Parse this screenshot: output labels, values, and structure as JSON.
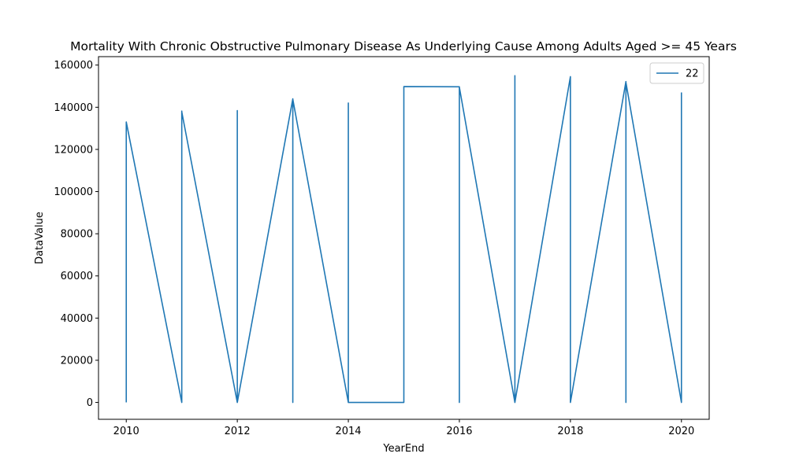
{
  "chart_data": {
    "type": "line",
    "title": "Mortality With Chronic Obstructive Pulmonary Disease As Underlying Cause Among Adults Aged >= 45 Years",
    "xlabel": "YearEnd",
    "ylabel": "DataValue",
    "xlim": [
      2009.5,
      2020.5
    ],
    "ylim": [
      -8000,
      164000
    ],
    "x_ticks": [
      2010,
      2012,
      2014,
      2016,
      2018,
      2020
    ],
    "x_tick_labels": [
      "2010",
      "2012",
      "2014",
      "2016",
      "2018",
      "2020"
    ],
    "y_ticks": [
      0,
      20000,
      40000,
      60000,
      80000,
      100000,
      120000,
      140000,
      160000
    ],
    "y_tick_labels": [
      "0",
      "20000",
      "40000",
      "60000",
      "80000",
      "100000",
      "120000",
      "140000",
      "160000"
    ],
    "grid": false,
    "legend_position": "top-right",
    "series": [
      {
        "name": "22",
        "color": "#1f77b4",
        "x": [
          2010,
          2010,
          2011,
          2011,
          2011,
          2011,
          2012,
          2012,
          2012,
          2013,
          2013,
          2013,
          2014,
          2014,
          2014,
          2015,
          2015,
          2016,
          2016,
          2016,
          2017,
          2017,
          2017,
          2018,
          2018,
          2018,
          2019,
          2019,
          2019,
          2020,
          2020
        ],
        "y": [
          0,
          133000,
          0,
          138200,
          0,
          137800,
          0,
          138400,
          0,
          144000,
          0,
          143800,
          0,
          142000,
          0,
          0,
          149800,
          149700,
          0,
          149500,
          0,
          155000,
          0,
          154500,
          0,
          0,
          152200,
          0,
          151800,
          0,
          147000
        ]
      }
    ]
  }
}
